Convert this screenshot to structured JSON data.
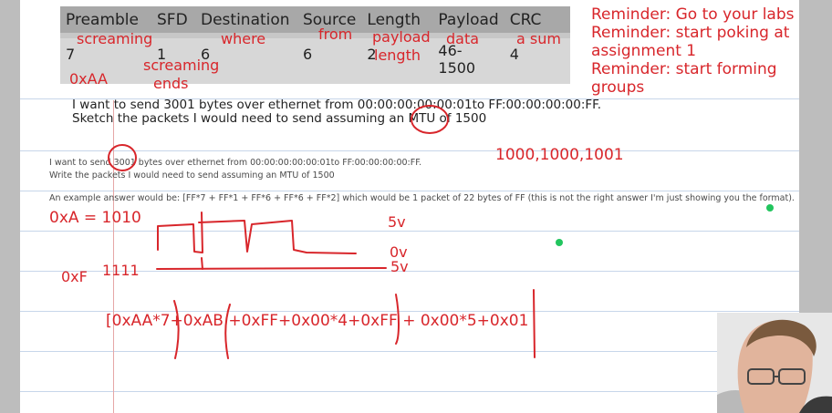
{
  "table": {
    "headers": [
      "Preamble",
      "SFD",
      "Destination",
      "Source",
      "Length",
      "Payload",
      "CRC"
    ],
    "values": [
      "7",
      "1",
      "6",
      "6",
      "2",
      "46-\n1500",
      "4"
    ]
  },
  "annotations": {
    "preamble_note": "screaming",
    "destination_note": "where",
    "source_note": "from",
    "length_note": "payload",
    "payload_note": "data",
    "crc_note": "a sum",
    "preamble_value_note": "0xAA",
    "sfd_note_1": "screaming",
    "sfd_note_2": "ends",
    "length_note_2": "length"
  },
  "reminders": {
    "line1": "Reminder: Go to your labs",
    "line2": "Reminder: start poking at",
    "line3": "assignment 1",
    "line4": "Reminder: start forming",
    "line5": "groups"
  },
  "question_large": {
    "line1": "I want to send 3001 bytes over ethernet from 00:00:00:00:00:01to FF:00:00:00:00:FF.",
    "line2": "Sketch the packets I would need to send assuming an MTU of 1500"
  },
  "question_small": {
    "line1": "I want to send 3001 bytes over ethernet from 00:00:00:00:00:01to FF:00:00:00:00:FF.",
    "line2": "Write the packets I would need to send assuming an MTU of 1500",
    "example": "An example answer would be: [FF*7 + FF*1 + FF*6 + FF*6 + FF*2] which would be 1 packet of 22 bytes of FF (this is not the right answer I'm just showing you the format)."
  },
  "handwriting": {
    "split": "1000,1000,1001",
    "hex_a": "0xA = 1010",
    "hex_f": "0xF",
    "bits_f": "1111",
    "v5_top": "5v",
    "v0": "0v",
    "v5_bottom": "5v",
    "formula": "[0xAA*7+0xAB +0xFF+0x00*4+0xFF + 0x00*5+0x01"
  },
  "colors": {
    "ink": "#d8262b",
    "header_bg": "#a8a8a8",
    "row_bg": "#d7d7d7",
    "cursor": "#22c55e"
  }
}
